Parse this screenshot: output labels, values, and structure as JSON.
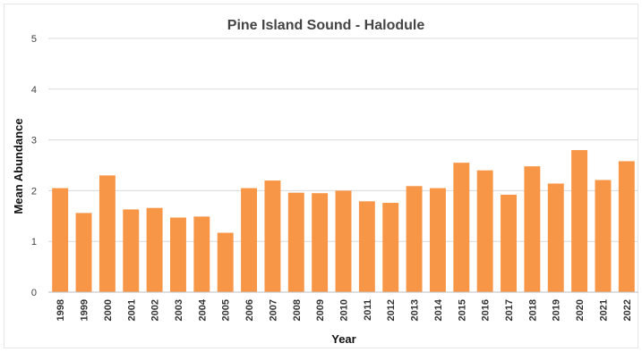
{
  "chart_data": {
    "type": "bar",
    "title": "Pine Island Sound - Halodule",
    "xlabel": "Year",
    "ylabel": "Mean Abundance",
    "ylim": [
      0,
      5
    ],
    "yticks": [
      "0",
      "1",
      "2",
      "3",
      "4",
      "5"
    ],
    "grid": true,
    "legend": "none",
    "bar_color": "#f79646",
    "categories": [
      "1998",
      "1999",
      "2000",
      "2001",
      "2002",
      "2003",
      "2004",
      "2005",
      "2006",
      "2007",
      "2008",
      "2009",
      "2010",
      "2011",
      "2012",
      "2013",
      "2014",
      "2015",
      "2016",
      "2017",
      "2018",
      "2019",
      "2020",
      "2021",
      "2022"
    ],
    "values": [
      2.05,
      1.56,
      2.3,
      1.63,
      1.66,
      1.47,
      1.49,
      1.17,
      2.05,
      2.2,
      1.96,
      1.95,
      2.0,
      1.79,
      1.76,
      2.09,
      2.05,
      2.55,
      2.4,
      1.92,
      2.48,
      2.14,
      2.8,
      2.21,
      2.58
    ]
  }
}
